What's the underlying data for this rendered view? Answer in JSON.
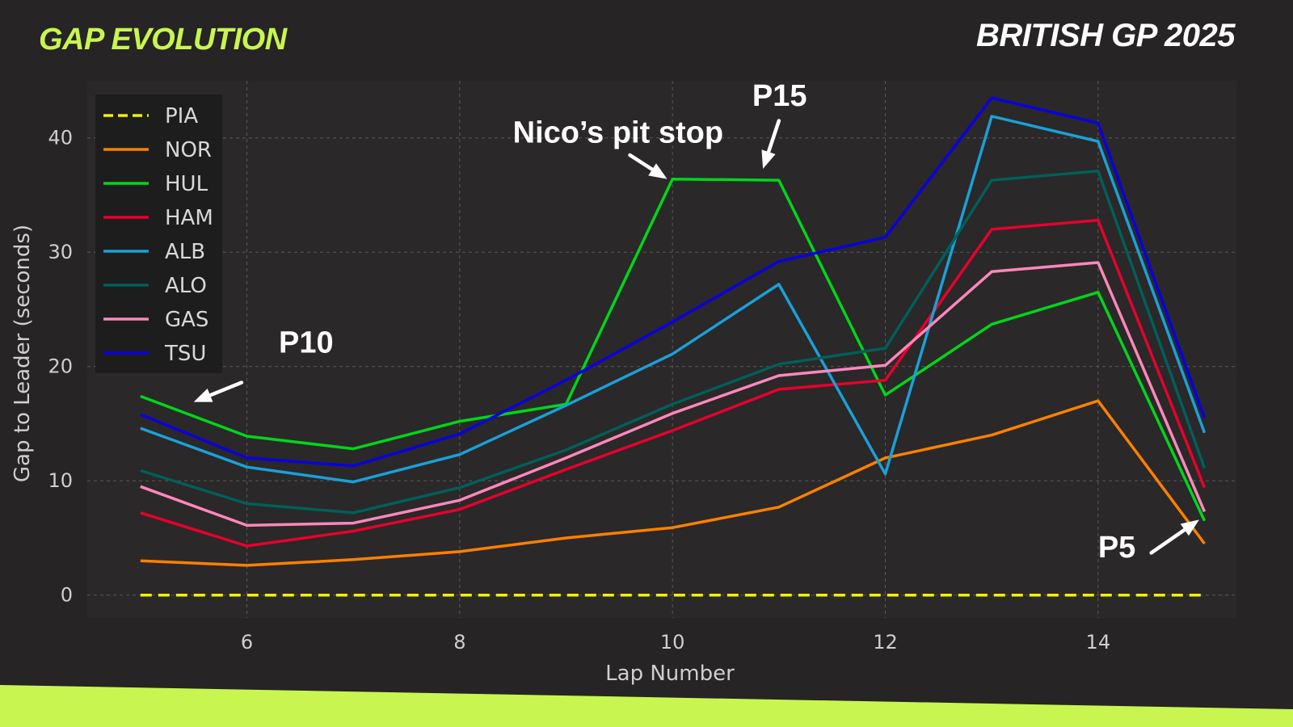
{
  "header": {
    "chart_title": "GAP EVOLUTION",
    "event_title": "BRITISH GP 2025"
  },
  "colors": {
    "background": "#262424",
    "plot_background": "#2a2828",
    "accent": "#c8f550",
    "grid": "#5a5a5a"
  },
  "chart_data": {
    "type": "line",
    "xlabel": "Lap Number",
    "ylabel": "Gap to Leader (seconds)",
    "xlim": [
      4.5,
      15.3
    ],
    "ylim": [
      -2,
      45
    ],
    "xticks": [
      6,
      8,
      10,
      12,
      14
    ],
    "yticks": [
      0,
      10,
      20,
      30,
      40
    ],
    "grid": true,
    "legend_position": "top-left",
    "x": [
      5,
      6,
      7,
      8,
      9,
      10,
      11,
      12,
      13,
      14,
      15
    ],
    "series": [
      {
        "name": "PIA",
        "color": "#f2f200",
        "dashed": true,
        "values": [
          0,
          0,
          0,
          0,
          0,
          0,
          0,
          0,
          0,
          0,
          0
        ]
      },
      {
        "name": "NOR",
        "color": "#ff8000",
        "dashed": false,
        "values": [
          3.0,
          2.6,
          3.1,
          3.8,
          5.0,
          5.9,
          7.7,
          12.0,
          14.0,
          17.0,
          4.5
        ]
      },
      {
        "name": "HUL",
        "color": "#00d61a",
        "dashed": false,
        "values": [
          17.4,
          13.9,
          12.8,
          15.2,
          16.7,
          36.4,
          36.3,
          17.5,
          23.7,
          26.5,
          6.5
        ]
      },
      {
        "name": "HAM",
        "color": "#e8002d",
        "dashed": false,
        "values": [
          7.2,
          4.3,
          5.6,
          7.5,
          11.0,
          14.4,
          18.0,
          18.8,
          32.0,
          32.8,
          9.4
        ]
      },
      {
        "name": "ALB",
        "color": "#1aa0d8",
        "dashed": false,
        "values": [
          14.6,
          11.2,
          9.9,
          12.3,
          16.6,
          21.1,
          27.2,
          10.6,
          41.9,
          39.7,
          14.2
        ]
      },
      {
        "name": "ALO",
        "color": "#005f5a",
        "dashed": false,
        "values": [
          10.9,
          8.0,
          7.2,
          9.4,
          12.7,
          16.7,
          20.2,
          21.6,
          36.3,
          37.1,
          11.1
        ]
      },
      {
        "name": "GAS",
        "color": "#ff87bc",
        "dashed": false,
        "values": [
          9.5,
          6.1,
          6.3,
          8.3,
          12.0,
          15.9,
          19.2,
          20.1,
          28.3,
          29.1,
          7.3
        ]
      },
      {
        "name": "TSU",
        "color": "#0a00e0",
        "dashed": false,
        "values": [
          15.8,
          12.0,
          11.3,
          14.1,
          18.8,
          23.9,
          29.2,
          31.3,
          43.5,
          41.3,
          15.5
        ]
      }
    ],
    "annotations": [
      {
        "text": "P10",
        "text_x": 6.3,
        "text_y": 21.2,
        "arrow_from": [
          5.95,
          18.6
        ],
        "arrow_to": [
          5.5,
          16.9
        ]
      },
      {
        "text": "Nico’s pit stop",
        "text_x": 8.5,
        "text_y": 39.6,
        "arrow_from": [
          9.6,
          38.5
        ],
        "arrow_to": [
          9.95,
          36.4
        ]
      },
      {
        "text": "P15",
        "text_x": 10.75,
        "text_y": 42.8,
        "arrow_from": [
          11.0,
          41.5
        ],
        "arrow_to": [
          10.85,
          37.3
        ]
      },
      {
        "text": "P5",
        "text_x": 14.0,
        "text_y": 3.3,
        "arrow_from": [
          14.5,
          3.7
        ],
        "arrow_to": [
          14.95,
          6.6
        ]
      }
    ]
  }
}
